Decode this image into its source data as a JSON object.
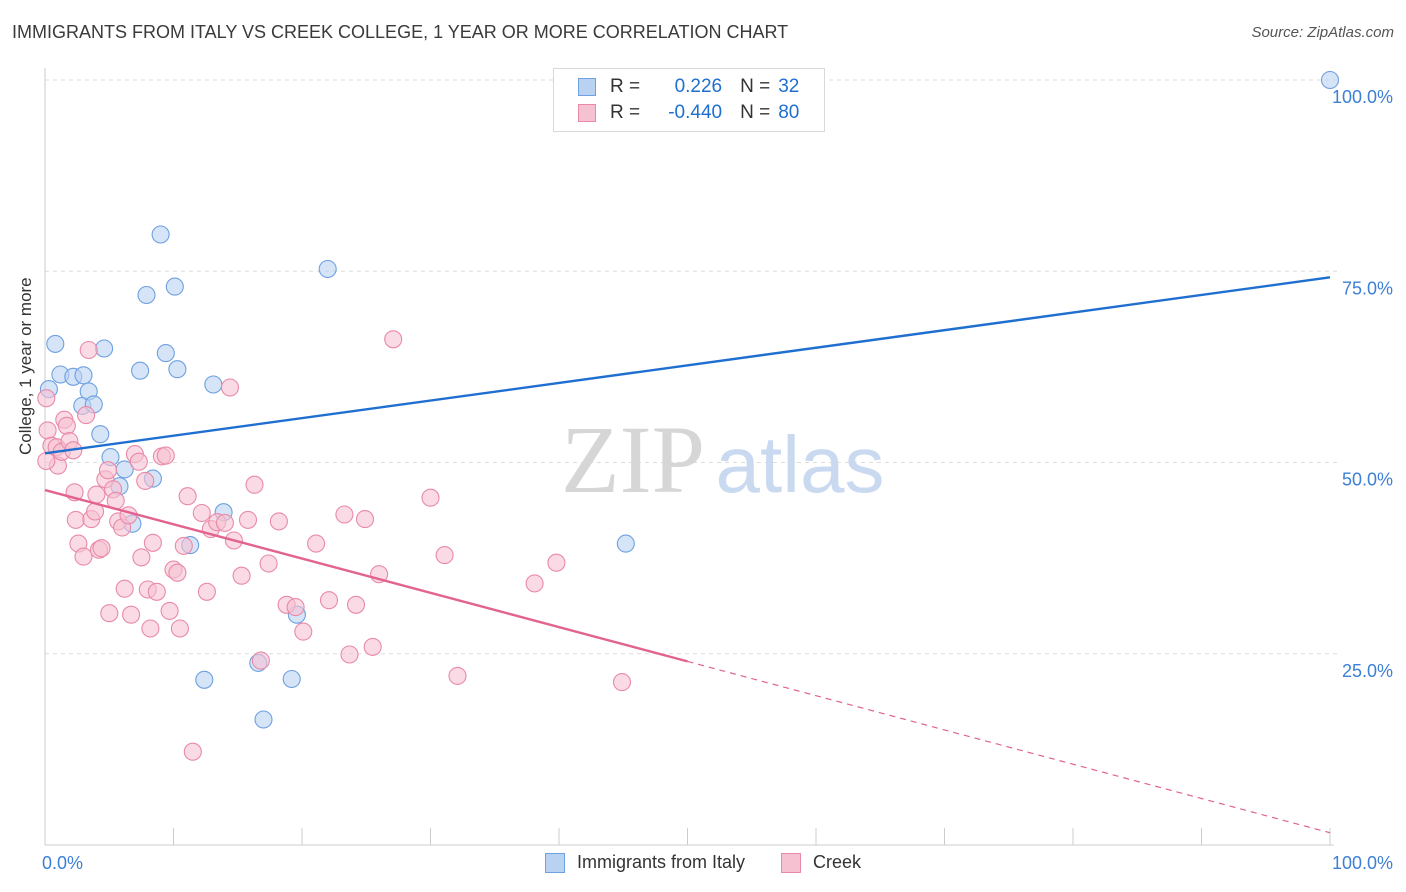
{
  "title": "IMMIGRANTS FROM ITALY VS CREEK COLLEGE, 1 YEAR OR MORE CORRELATION CHART",
  "source": "Source: ZipAtlas.com",
  "watermark": {
    "zip": "ZIP",
    "atlas": "atlas"
  },
  "legend": {
    "r_label": "R =",
    "n_label": "N =",
    "rows": [
      {
        "r": "0.226",
        "n": "32"
      },
      {
        "r": "-0.440",
        "n": "80"
      }
    ]
  },
  "chart_data": {
    "type": "scatter",
    "title": "IMMIGRANTS FROM ITALY VS CREEK COLLEGE, 1 YEAR OR MORE CORRELATION CHART",
    "xlabel": "",
    "ylabel": "College, 1 year or more",
    "xlim": [
      0,
      100
    ],
    "ylim": [
      0,
      100
    ],
    "x_tick_labels": [
      "0.0%",
      "100.0%"
    ],
    "y_ticks": [
      25,
      50,
      75,
      100
    ],
    "y_tick_labels": [
      "25.0%",
      "50.0%",
      "75.0%",
      "100.0%"
    ],
    "grid": true,
    "legend_position": "top-center",
    "series": [
      {
        "name": "Immigrants from Italy",
        "color": "#6fa0e0",
        "fill": "#b9d2f2",
        "trend": {
          "x": [
            0,
            100
          ],
          "y": [
            51.2,
            74.2
          ],
          "solid_to": 100
        },
        "points": [
          [
            0.3,
            59.6
          ],
          [
            0.8,
            65.5
          ],
          [
            1.2,
            61.5
          ],
          [
            2.2,
            61.2
          ],
          [
            2.9,
            57.4
          ],
          [
            3.0,
            61.4
          ],
          [
            3.4,
            59.3
          ],
          [
            3.8,
            57.6
          ],
          [
            4.3,
            53.7
          ],
          [
            4.6,
            64.9
          ],
          [
            5.1,
            50.7
          ],
          [
            5.8,
            46.9
          ],
          [
            6.2,
            49.1
          ],
          [
            6.8,
            42.0
          ],
          [
            7.4,
            62.0
          ],
          [
            7.9,
            71.9
          ],
          [
            8.4,
            47.9
          ],
          [
            9.0,
            79.8
          ],
          [
            9.4,
            64.3
          ],
          [
            10.1,
            73.0
          ],
          [
            10.3,
            62.2
          ],
          [
            11.3,
            39.2
          ],
          [
            12.4,
            21.6
          ],
          [
            13.1,
            60.2
          ],
          [
            13.9,
            43.5
          ],
          [
            16.6,
            23.8
          ],
          [
            17.0,
            16.4
          ],
          [
            19.2,
            21.7
          ],
          [
            19.6,
            30.1
          ],
          [
            22.0,
            75.3
          ],
          [
            45.2,
            39.4
          ],
          [
            100.0,
            100.0
          ]
        ]
      },
      {
        "name": "Creek",
        "color": "#e98aa8",
        "fill": "#f6c2d2",
        "trend": {
          "x": [
            0,
            100
          ],
          "y": [
            46.4,
            1.6
          ],
          "solid_to": 50
        },
        "points": [
          [
            0.1,
            58.4
          ],
          [
            0.2,
            54.2
          ],
          [
            0.5,
            52.2
          ],
          [
            0.9,
            52.0
          ],
          [
            1.0,
            49.6
          ],
          [
            1.3,
            51.4
          ],
          [
            1.5,
            55.6
          ],
          [
            1.7,
            54.8
          ],
          [
            1.9,
            52.8
          ],
          [
            2.2,
            51.6
          ],
          [
            2.3,
            46.1
          ],
          [
            2.4,
            42.5
          ],
          [
            2.6,
            39.4
          ],
          [
            3.0,
            37.7
          ],
          [
            3.2,
            56.2
          ],
          [
            3.4,
            64.7
          ],
          [
            3.6,
            42.6
          ],
          [
            3.9,
            43.6
          ],
          [
            4.0,
            45.8
          ],
          [
            4.2,
            38.6
          ],
          [
            4.4,
            38.8
          ],
          [
            4.7,
            47.8
          ],
          [
            4.9,
            49.0
          ],
          [
            5.0,
            30.3
          ],
          [
            5.3,
            46.5
          ],
          [
            5.5,
            45.0
          ],
          [
            5.7,
            42.3
          ],
          [
            6.0,
            41.5
          ],
          [
            6.2,
            33.5
          ],
          [
            6.5,
            43.1
          ],
          [
            6.7,
            30.1
          ],
          [
            7.0,
            51.1
          ],
          [
            7.3,
            50.1
          ],
          [
            7.5,
            37.6
          ],
          [
            7.8,
            47.6
          ],
          [
            8.0,
            33.4
          ],
          [
            8.2,
            28.3
          ],
          [
            8.4,
            39.5
          ],
          [
            8.7,
            33.1
          ],
          [
            9.1,
            50.8
          ],
          [
            9.4,
            50.9
          ],
          [
            9.7,
            30.6
          ],
          [
            10.0,
            36.0
          ],
          [
            10.3,
            35.6
          ],
          [
            10.5,
            28.3
          ],
          [
            10.8,
            39.1
          ],
          [
            11.1,
            45.6
          ],
          [
            11.5,
            12.2
          ],
          [
            12.2,
            43.4
          ],
          [
            12.6,
            33.1
          ],
          [
            12.9,
            41.3
          ],
          [
            13.4,
            42.2
          ],
          [
            14.0,
            42.1
          ],
          [
            14.4,
            59.8
          ],
          [
            14.7,
            39.8
          ],
          [
            15.3,
            35.2
          ],
          [
            15.8,
            42.5
          ],
          [
            16.3,
            47.1
          ],
          [
            16.8,
            24.1
          ],
          [
            17.4,
            36.8
          ],
          [
            18.2,
            42.3
          ],
          [
            18.8,
            31.4
          ],
          [
            19.5,
            31.1
          ],
          [
            20.1,
            27.9
          ],
          [
            21.1,
            39.4
          ],
          [
            22.1,
            32.0
          ],
          [
            23.3,
            43.2
          ],
          [
            23.7,
            24.9
          ],
          [
            24.2,
            31.4
          ],
          [
            24.9,
            42.6
          ],
          [
            25.5,
            25.9
          ],
          [
            26.0,
            35.4
          ],
          [
            27.1,
            66.1
          ],
          [
            30.0,
            45.4
          ],
          [
            31.1,
            37.9
          ],
          [
            32.1,
            22.1
          ],
          [
            38.1,
            34.2
          ],
          [
            39.8,
            36.9
          ],
          [
            44.9,
            21.3
          ],
          [
            0.1,
            50.2
          ]
        ]
      }
    ]
  }
}
